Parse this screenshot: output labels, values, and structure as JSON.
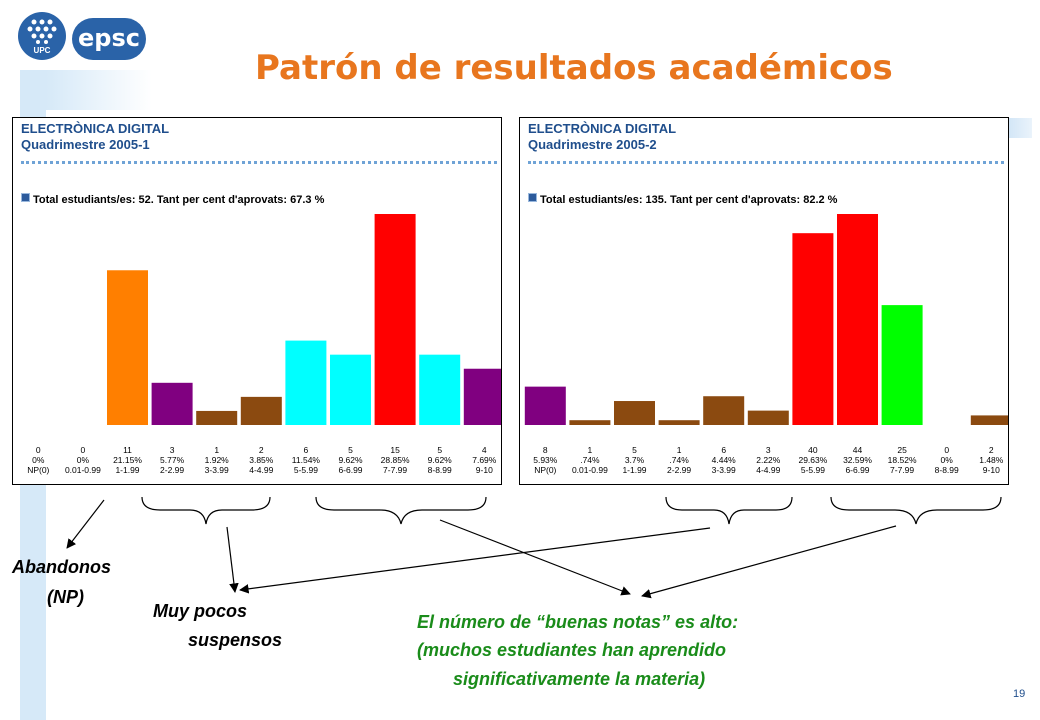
{
  "slide": {
    "title": "Patrón de resultados académicos",
    "logo_text_1": "UPC",
    "logo_text_2": "epsc",
    "page_number": "19",
    "colors": {
      "title": "#e8761e",
      "green_text": "#1a8c1a",
      "accent_blue": "#1f4e8c"
    }
  },
  "annotations": {
    "abandonos_1": "Abandonos",
    "abandonos_2": "(NP)",
    "suspensos_1": "Muy pocos",
    "suspensos_2": "suspensos",
    "buenas_1": "El número de “buenas notas” es alto:",
    "buenas_2": "(muchos estudiantes han aprendido",
    "buenas_3": "significativamente la materia)"
  },
  "chart_data": [
    {
      "type": "bar",
      "title": "ELECTRÒNICA DIGITAL",
      "subtitle": "Quadrimestre 2005-1",
      "legend": "Total estudiants/es: 52. Tant per cent d'aprovats:  67.3 %",
      "categories": [
        "NP(0)",
        "0.01-0.99",
        "1-1.99",
        "2-2.99",
        "3-3.99",
        "4-4.99",
        "5-5.99",
        "6-6.99",
        "7-7.99",
        "8-8.99",
        "9-10"
      ],
      "values": [
        0,
        0,
        11,
        3,
        1,
        2,
        6,
        5,
        15,
        5,
        4
      ],
      "percent_labels": [
        "0%",
        "0%",
        "21.15%",
        "5.77%",
        "1.92%",
        "3.85%",
        "11.54%",
        "9.62%",
        "28.85%",
        "9.62%",
        "7.69%"
      ],
      "colors": [
        "#7b0e7b",
        "#8b4a10",
        "#ff7f00",
        "#800080",
        "#8b4a10",
        "#8b4a10",
        "#00ffff",
        "#00ffff",
        "#ff0000",
        "#00ffff",
        "#800080"
      ],
      "ylim": [
        0,
        15
      ]
    },
    {
      "type": "bar",
      "title": "ELECTRÒNICA DIGITAL",
      "subtitle": "Quadrimestre 2005-2",
      "legend": "Total estudiants/es: 135. Tant per cent d'aprovats:  82.2 %",
      "categories": [
        "NP(0)",
        "0.01-0.99",
        "1-1.99",
        "2-2.99",
        "3-3.99",
        "4-4.99",
        "5-5.99",
        "6-6.99",
        "7-7.99",
        "8-8.99",
        "9-10"
      ],
      "values": [
        8,
        1,
        5,
        1,
        6,
        3,
        40,
        44,
        25,
        0,
        2
      ],
      "percent_labels": [
        "5.93%",
        ".74%",
        "3.7%",
        ".74%",
        "4.44%",
        "2.22%",
        "29.63%",
        "32.59%",
        "18.52%",
        "0%",
        "1.48%"
      ],
      "colors": [
        "#800080",
        "#8b4a10",
        "#8b4a10",
        "#8b4a10",
        "#8b4a10",
        "#8b4a10",
        "#ff0000",
        "#ff0000",
        "#00ff00",
        "#8b4a10",
        "#8b4a10"
      ],
      "ylim": [
        0,
        44
      ]
    }
  ]
}
